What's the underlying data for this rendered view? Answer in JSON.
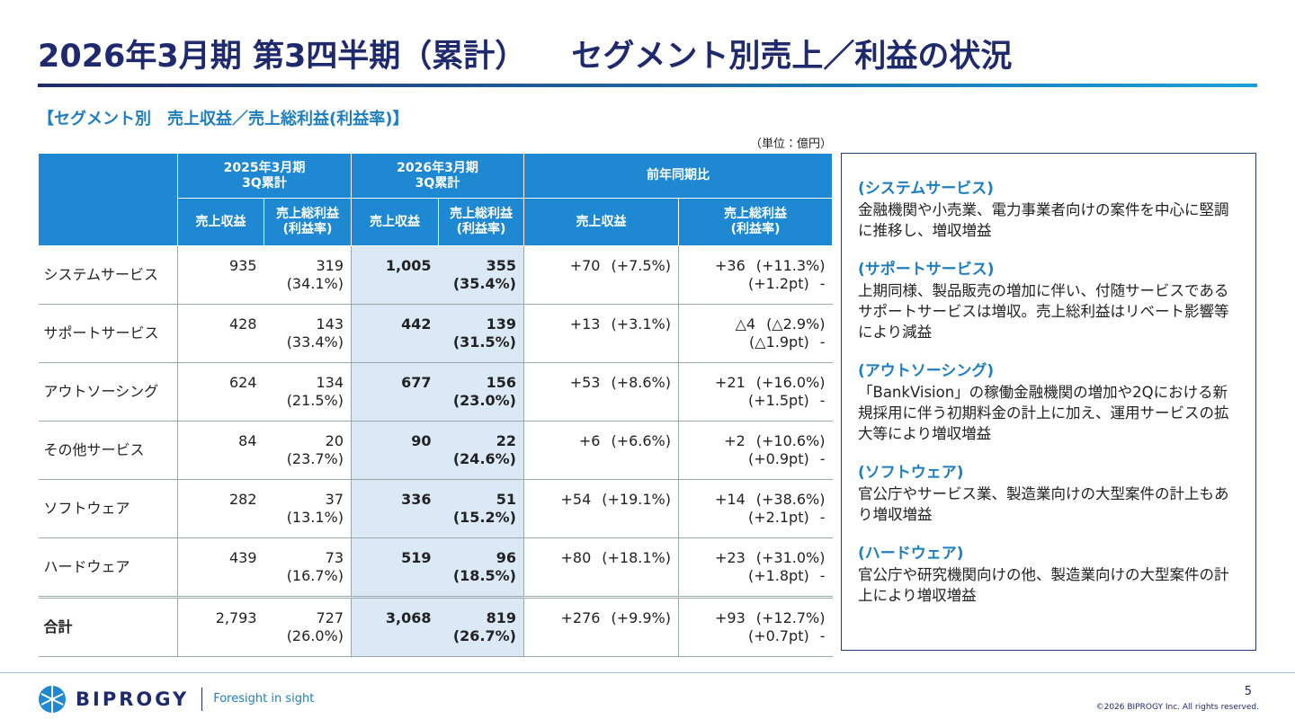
{
  "header": {
    "title_left": "2026年3月期 第3四半期（累計）",
    "title_right": "セグメント別売上／利益の状況"
  },
  "subtitle": "【セグメント別　売上収益／売上総利益(利益率)】",
  "unit": "（単位：億円）",
  "table": {
    "group_headers": [
      "2025年3月期\n3Q累計",
      "2026年3月期\n3Q累計",
      "前年同期比"
    ],
    "sub_headers": [
      "売上収益",
      "売上総利益\n(利益率)",
      "売上収益",
      "売上総利益\n(利益率)",
      "売上収益",
      "売上総利益\n(利益率)"
    ],
    "rows": [
      {
        "name": "システムサービス",
        "cells": [
          "935",
          "319",
          "(34.1%)",
          "1,005",
          "355",
          "(35.4%)",
          "+70",
          "(+7.5%)",
          "+36",
          "(+11.3%)",
          "(+1.2pt)",
          "-"
        ]
      },
      {
        "name": "サポートサービス",
        "cells": [
          "428",
          "143",
          "(33.4%)",
          "442",
          "139",
          "(31.5%)",
          "+13",
          "(+3.1%)",
          "△4",
          "(△2.9%)",
          "(△1.9pt)",
          "-"
        ]
      },
      {
        "name": "アウトソーシング",
        "cells": [
          "624",
          "134",
          "(21.5%)",
          "677",
          "156",
          "(23.0%)",
          "+53",
          "(+8.6%)",
          "+21",
          "(+16.0%)",
          "(+1.5pt)",
          "-"
        ]
      },
      {
        "name": "その他サービス",
        "cells": [
          "84",
          "20",
          "(23.7%)",
          "90",
          "22",
          "(24.6%)",
          "+6",
          "(+6.6%)",
          "+2",
          "(+10.6%)",
          "(+0.9pt)",
          "-"
        ]
      },
      {
        "name": "ソフトウェア",
        "cells": [
          "282",
          "37",
          "(13.1%)",
          "336",
          "51",
          "(15.2%)",
          "+54",
          "(+19.1%)",
          "+14",
          "(+38.6%)",
          "(+2.1pt)",
          "-"
        ]
      },
      {
        "name": "ハードウェア",
        "cells": [
          "439",
          "73",
          "(16.7%)",
          "519",
          "96",
          "(18.5%)",
          "+80",
          "(+18.1%)",
          "+23",
          "(+31.0%)",
          "(+1.8pt)",
          "-"
        ]
      },
      {
        "name": "合計",
        "cells": [
          "2,793",
          "727",
          "(26.0%)",
          "3,068",
          "819",
          "(26.7%)",
          "+276",
          "(+9.9%)",
          "+93",
          "(+12.7%)",
          "(+0.7pt)",
          "-"
        ]
      }
    ]
  },
  "notes": [
    {
      "heading": "(システムサービス)",
      "body": "金融機関や小売業、電力事業者向けの案件を中心に堅調に推移し、増収増益"
    },
    {
      "heading": "(サポートサービス)",
      "body": "上期同様、製品販売の増加に伴い、付随サービスであるサポートサービスは増収。売上総利益はリベート影響等により減益"
    },
    {
      "heading": "(アウトソーシング)",
      "body": "「BankVision」の稼働金融機関の増加や2Qにおける新規採用に伴う初期料金の計上に加え、運用サービスの拡大等により増収増益"
    },
    {
      "heading": "(ソフトウェア)",
      "body": "官公庁やサービス業、製造業向けの大型案件の計上もあり増収増益"
    },
    {
      "heading": "(ハードウェア)",
      "body": "官公庁や研究機関向けの他、製造業向けの大型案件の計上により増収増益"
    }
  ],
  "footer": {
    "logo": "BIPROGY",
    "tagline": "Foresight in sight",
    "page": "5",
    "copyright": "©2026 BIPROGY Inc. All rights reserved."
  }
}
